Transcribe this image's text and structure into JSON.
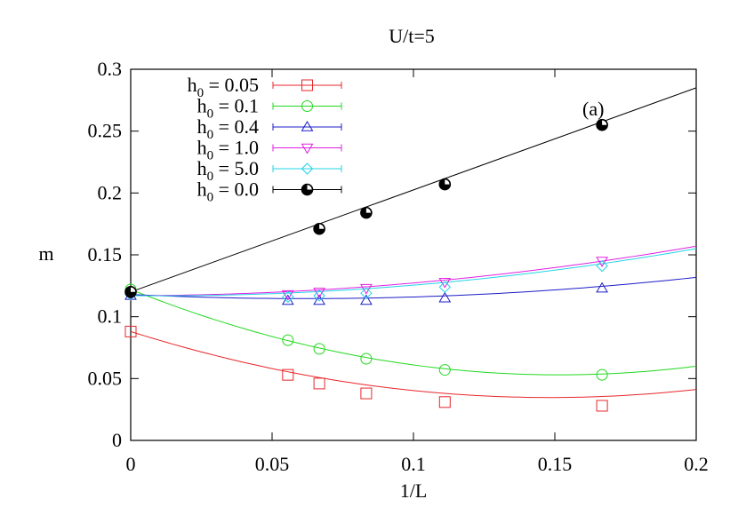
{
  "chart_data": {
    "type": "line",
    "title": "U/t=5",
    "xlabel": "1/L",
    "ylabel": "m",
    "xlim": [
      0,
      0.2
    ],
    "ylim": [
      0,
      0.3
    ],
    "grid": false,
    "legend_position": "top-left",
    "annotation": "(a)",
    "x_ticks": [
      {
        "value": 0,
        "label": "0"
      },
      {
        "value": 0.05,
        "label": "0.05"
      },
      {
        "value": 0.1,
        "label": "0.1"
      },
      {
        "value": 0.15,
        "label": "0.15"
      },
      {
        "value": 0.2,
        "label": "0.2"
      }
    ],
    "y_ticks": [
      {
        "value": 0,
        "label": "0"
      },
      {
        "value": 0.05,
        "label": "0.05"
      },
      {
        "value": 0.1,
        "label": "0.1"
      },
      {
        "value": 0.15,
        "label": "0.15"
      },
      {
        "value": 0.2,
        "label": "0.2"
      },
      {
        "value": 0.25,
        "label": "0.25"
      },
      {
        "value": 0.3,
        "label": "0.3"
      }
    ],
    "series": [
      {
        "name_base": "h",
        "name_sub": "0",
        "name_value": " = 0.05",
        "color": "#e8262b",
        "marker": "square",
        "x": [
          0,
          0.0556,
          0.0667,
          0.0833,
          0.1111,
          0.1667
        ],
        "y": [
          0.088,
          0.053,
          0.046,
          0.038,
          0.031,
          0.028
        ],
        "fit": [
          0.088,
          -0.72,
          2.43
        ]
      },
      {
        "name_base": "h",
        "name_sub": "0",
        "name_value": " = 0.1",
        "color": "#22d81e",
        "marker": "circle",
        "x": [
          0,
          0.0556,
          0.0667,
          0.0833,
          0.1111,
          0.1667
        ],
        "y": [
          0.122,
          0.081,
          0.074,
          0.066,
          0.057,
          0.053
        ],
        "fit": [
          0.122,
          -0.91,
          3.0
        ]
      },
      {
        "name_base": "h",
        "name_sub": "0",
        "name_value": " = 0.4",
        "color": "#1c1cc8",
        "marker": "triangle-up",
        "x": [
          0,
          0.0556,
          0.0667,
          0.0833,
          0.1111,
          0.1667
        ],
        "y": [
          0.117,
          0.113,
          0.113,
          0.113,
          0.115,
          0.123
        ],
        "fit": [
          0.118,
          -0.11,
          0.895
        ]
      },
      {
        "name_base": "h",
        "name_sub": "0",
        "name_value": " = 1.0",
        "color": "#e020e0",
        "marker": "triangle-down",
        "x": [
          0,
          0.0556,
          0.0667,
          0.0833,
          0.1111,
          0.1667
        ],
        "y": [
          0.118,
          0.118,
          0.12,
          0.123,
          0.128,
          0.145
        ],
        "fit": [
          0.117,
          0.005,
          0.975
        ]
      },
      {
        "name_base": "h",
        "name_sub": "0",
        "name_value": " = 5.0",
        "color": "#22d4e6",
        "marker": "diamond",
        "x": [
          0,
          0.0556,
          0.0667,
          0.0833,
          0.1111,
          0.1667
        ],
        "y": [
          0.118,
          0.116,
          0.117,
          0.119,
          0.124,
          0.141
        ],
        "fit": [
          0.117,
          -0.02,
          1.05
        ]
      },
      {
        "name_base": "h",
        "name_sub": "0",
        "name_value": " = 0.0",
        "color": "#000000",
        "marker": "half-circle",
        "x": [
          0,
          0.0667,
          0.0833,
          0.1111,
          0.1667
        ],
        "y": [
          0.12,
          0.171,
          0.184,
          0.207,
          0.255
        ],
        "fit": [
          0.12,
          0.825,
          0
        ]
      }
    ]
  }
}
